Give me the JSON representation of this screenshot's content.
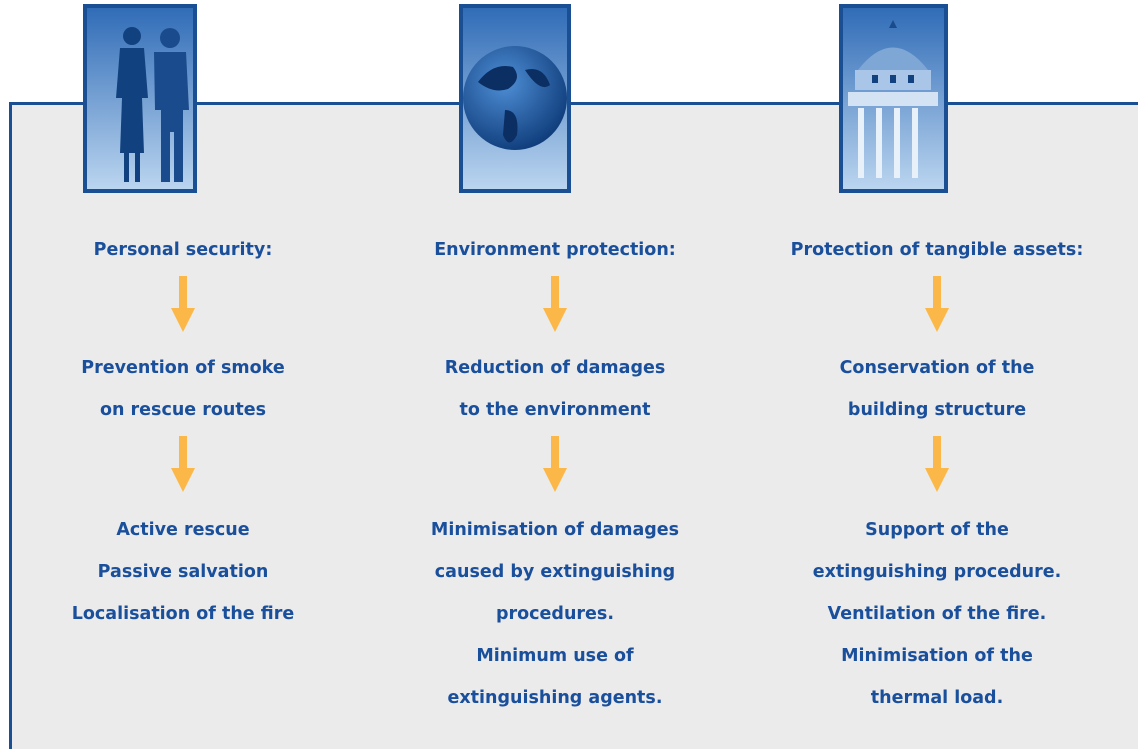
{
  "columns": [
    {
      "heading": "Personal security:",
      "middle": [
        "Prevention of smoke",
        "on rescue routes"
      ],
      "bottom": [
        "Active rescue",
        "Passive salvation",
        "Localisation of the fire"
      ]
    },
    {
      "heading": "Environment protection:",
      "middle": [
        "Reduction of damages",
        "to the environment"
      ],
      "bottom": [
        "Minimisation of damages",
        "caused by extinguishing",
        "procedures.",
        "Minimum use of",
        "extinguishing agents."
      ]
    },
    {
      "heading": "Protection of tangible assets:",
      "middle": [
        "Conservation of the",
        "building structure"
      ],
      "bottom": [
        "Support of the",
        "extinguishing procedure.",
        "Ventilation of the fire.",
        "Minimisation of the",
        "thermal load."
      ]
    }
  ]
}
